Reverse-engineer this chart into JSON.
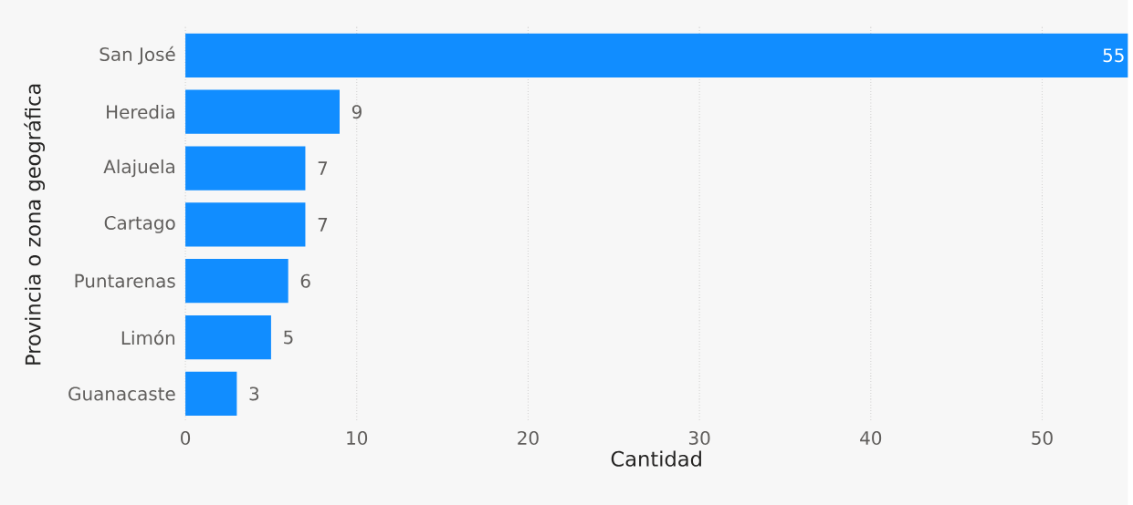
{
  "chart_data": {
    "type": "bar",
    "orientation": "horizontal",
    "xlabel": "Cantidad",
    "ylabel": "Provincia o zona geográfica",
    "categories": [
      "San José",
      "Heredia",
      "Alajuela",
      "Cartago",
      "Puntarenas",
      "Limón",
      "Guanacaste"
    ],
    "values": [
      55,
      9,
      7,
      7,
      6,
      5,
      3
    ],
    "color": "#118dff",
    "xlim": [
      0,
      55
    ],
    "xticks": [
      0,
      10,
      20,
      30,
      40,
      50
    ],
    "grid": "x",
    "data_labels": true
  }
}
